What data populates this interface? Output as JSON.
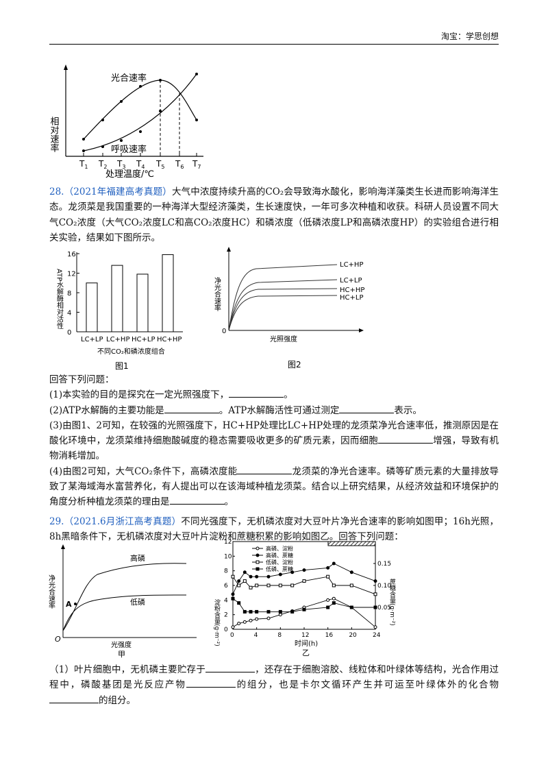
{
  "header": {
    "right_text": "淘宝：学思创想"
  },
  "fig_top": {
    "ylabel": "相对速率",
    "xlabel": "处理温度/℃",
    "ticks": [
      "T1",
      "T2",
      "T3",
      "T4",
      "T5",
      "T6",
      "T7"
    ],
    "curve1_label": "光合速率",
    "curve2_label": "呼吸速率"
  },
  "q28": {
    "num": "28.",
    "source": "（2021年福建高考真题）",
    "intro": "大气中浓度持续升高的CO₂会导致海水酸化，影响海洋藻类生长进而影响海洋生态。龙须菜是我国重要的一种海洋大型经济藻类，生长速度快，一年可多次种植和收获。科研人员设置不同大气CO₂浓度（大气CO₂浓度LC和高CO₂浓度HC）和磷浓度（低磷浓度LP和高磷浓度HP）的实验组合进行相关实验，结果如下图所示。",
    "fig1": {
      "ylabel": "ATP水解酶相对活性",
      "xlabel": "不同CO₂和磷浓度组合",
      "caption": "图1",
      "yticks": [
        "0",
        "4",
        "8",
        "12",
        "16"
      ]
    },
    "fig2": {
      "ylabel": "净光合速率",
      "xlabel": "光照强度",
      "origin": "0",
      "caption": "图2",
      "labels": [
        "LC+HP",
        "LC+LP",
        "HC+HP",
        "HC+LP"
      ]
    },
    "prompt": "回答下列问题：",
    "s1": {
      "a": "(1)本实验的目的是探究在一定光照强度下，",
      "b": "。"
    },
    "s2": {
      "a": "(2)ATP水解酶的主要功能是",
      "b": "。ATP水解酶活性可通过测定",
      "c": "表示。"
    },
    "s3": {
      "a": "(3)由图1、2可知，在较强的光照强度下，HC+HP处理比LC+HP处理的龙须菜净光合速率低，推测原因是在酸化环境中，龙须菜维持细胞酸碱度的稳态需要吸收更多的矿质元素，因而细胞",
      "b": "增强，导致有机物消耗增加。"
    },
    "s4": {
      "a": "(4)由图2可知，大气CO₂条件下，高磷浓度能",
      "b": "龙须菜的净光合速率。磷等矿质元素的大量排放导致了某海域海水富营养化，有人提出可以在该海域种植龙须菜。结合以上研究结果，从经济效益和环境保护的角度分析种植龙须菜的理由是",
      "c": "。"
    }
  },
  "chart_data": [
    {
      "type": "bar",
      "categories": [
        "LC+LP",
        "LC+HP",
        "HC+LP",
        "HC+HP"
      ],
      "values": [
        10,
        13.6,
        11.8,
        15.8
      ],
      "xlabel": "不同CO₂和磷浓度组合",
      "ylabel": "ATP水解酶相对活性",
      "ylim": [
        0,
        16
      ]
    },
    {
      "type": "line",
      "x": [
        0,
        1,
        2,
        3,
        4,
        6,
        8,
        10,
        12,
        16,
        17,
        20,
        24
      ],
      "series": [
        {
          "name": "高磷、淀粉",
          "values": [
            0.3,
            0.8,
            1.0,
            1.2,
            1.4,
            1.5,
            2.0,
            2.5,
            3.0,
            4.0,
            4.2,
            3.0,
            0.3
          ]
        },
        {
          "name": "高磷、蔗糖",
          "values": [
            0.08,
            0.11,
            0.13,
            0.12,
            0.12,
            0.12,
            0.125,
            0.13,
            0.135,
            0.14,
            0.15,
            0.13,
            0.11
          ]
        },
        {
          "name": "低磷、淀粉",
          "values": [
            0.12,
            0.1,
            0.11,
            0.095,
            0.1,
            0.1,
            0.1,
            0.1,
            0.11,
            0.12,
            0.1,
            0.1,
            0.08
          ]
        },
        {
          "name": "低磷、蔗糖",
          "values": [
            0.07,
            0.06,
            0.04,
            0.04,
            0.04,
            0.04,
            0.04,
            0.04,
            0.045,
            0.05,
            0.06,
            0.05,
            0.05
          ]
        }
      ],
      "xlabel": "时间(h)",
      "ylabel": "淀粉含量(g·m⁻²)",
      "y2label": "蔗糖含量(g·m⁻²)",
      "xlim": [
        0,
        24
      ],
      "ylim": [
        0,
        12
      ],
      "y2lim": [
        0,
        0.2
      ]
    }
  ],
  "q29": {
    "num": "29.",
    "source": "（2021.6月浙江高考真题）",
    "intro": "不同光强度下，无机磷浓度对大豆叶片净光合速率的影响如图甲；16h光照，8h黑暗条件下，无机磷浓度对大豆叶片淀粉和蔗糖积累的影响如图乙。回答下列问题：",
    "fig_a": {
      "ylabel": "净光合速率",
      "xlabel": "光强度",
      "origin": "O",
      "point": "A",
      "high": "高磷",
      "low": "低磷",
      "caption": "甲"
    },
    "fig_b": {
      "caption": "乙",
      "xticks": [
        "0",
        "4",
        "8",
        "12",
        "16",
        "20",
        "24"
      ],
      "yticks": [
        "0",
        "2",
        "4",
        "6",
        "8",
        "10",
        "12"
      ],
      "y2ticks": [
        "0.05",
        "0.10",
        "0.15"
      ],
      "xlabel": "时间(h)",
      "ylabel": "淀粉含量(g·m⁻²)",
      "y2label": "蔗糖含量(g·m⁻²)",
      "legend": [
        "高磷、淀粉",
        "高磷、蔗糖",
        "低磷、淀粉",
        "低磷、蔗糖"
      ]
    },
    "s1": {
      "a": "（1）叶片细胞中，无机磷主要贮存于",
      "b": "，还存在于细胞溶胶、线粒体和叶绿体等结构，光合作用过程中，磷酸基团是光反应产物",
      "c": "的组分，也是卡尔文循环产生并可运至叶绿体外的化合物",
      "d": "的组分。"
    }
  }
}
